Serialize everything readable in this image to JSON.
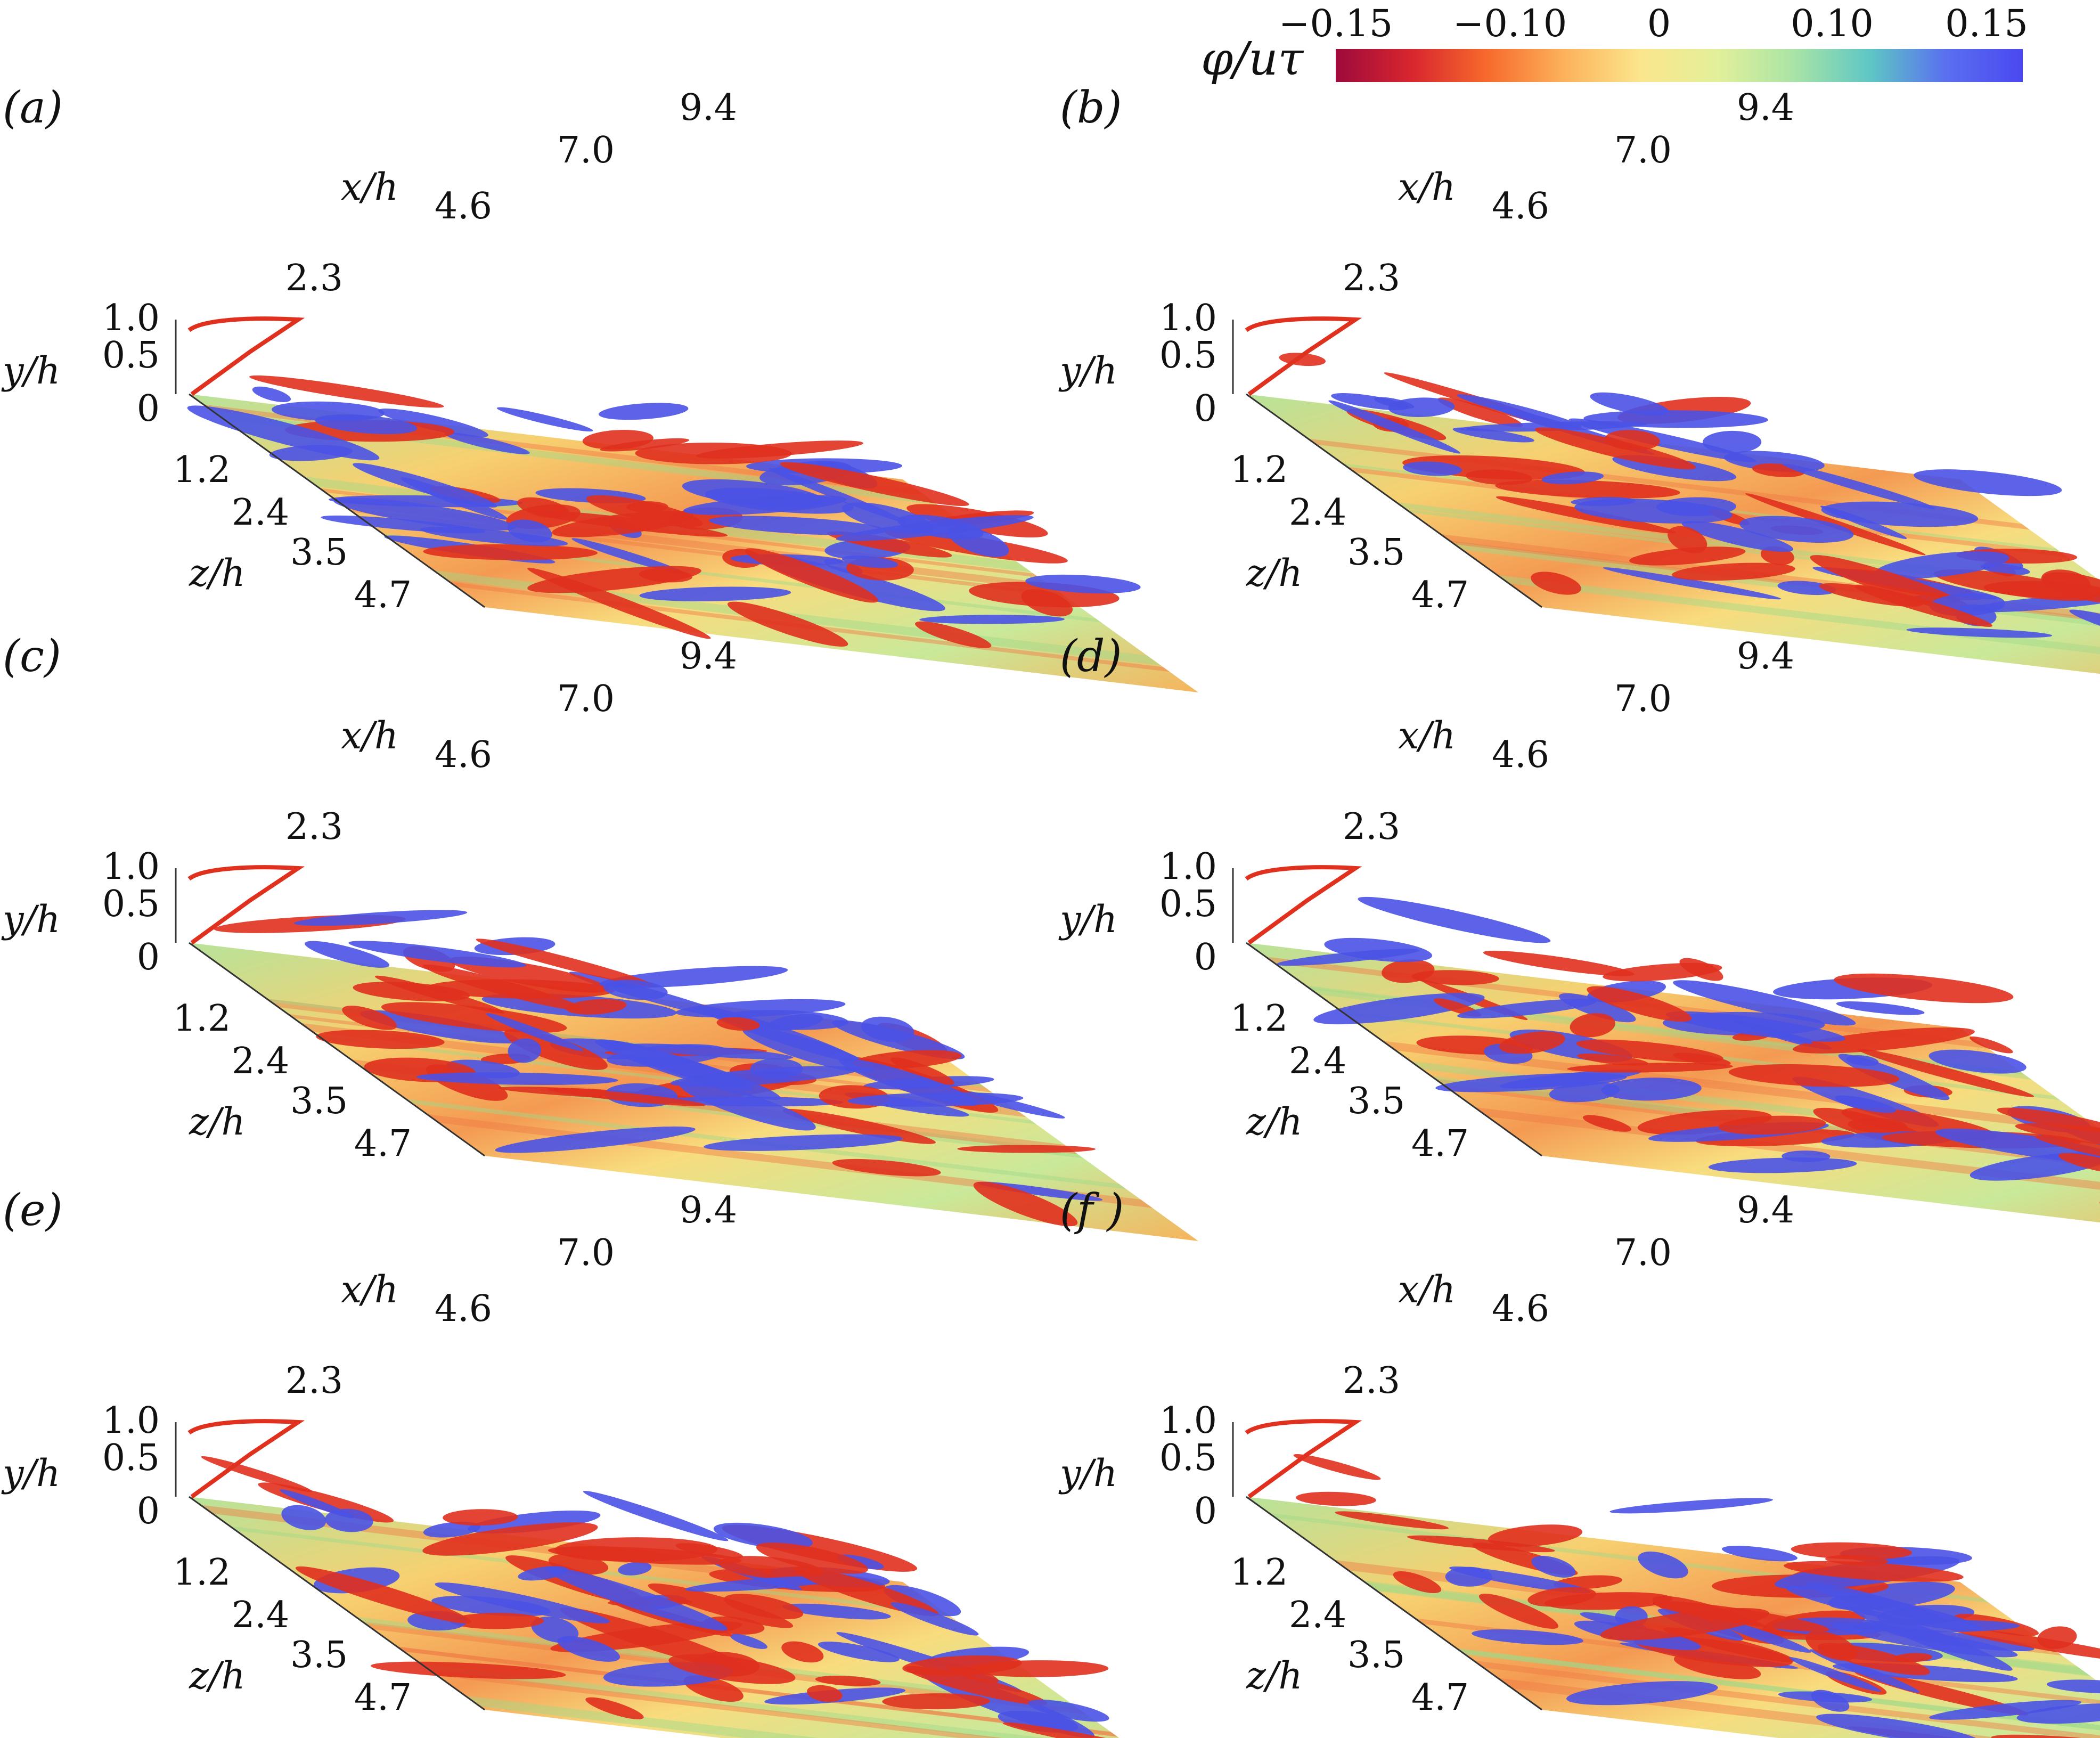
{
  "colorbar": {
    "label": "φ/uτ",
    "ticks": [
      "−0.15",
      "−0.10",
      "0",
      "0.10",
      "0.15"
    ],
    "stops": [
      "#9e0a3c",
      "#d8262e",
      "#f76b2c",
      "#fcb25b",
      "#fbe68c",
      "#e2f09a",
      "#a9e4a6",
      "#5ec6c5",
      "#5a6ff0",
      "#4a48f0"
    ]
  },
  "axes": {
    "x_label": "x/h",
    "y_label": "y/h",
    "z_label": "z/h",
    "x_ticks": [
      "2.3",
      "4.6",
      "7.0",
      "9.4"
    ],
    "y_ticks": [
      "1.0",
      "0.5",
      "0"
    ],
    "z_ticks": [
      "1.2",
      "2.4",
      "3.5",
      "4.7"
    ]
  },
  "colors": {
    "positive_structure": "#4a52e6",
    "negative_structure": "#e0301e",
    "wall_base": "#f2c66a"
  },
  "panels": [
    {
      "label": "(a)"
    },
    {
      "label": "(b)"
    },
    {
      "label": "(c)"
    },
    {
      "label": "(d)"
    },
    {
      "label": "(e)"
    },
    {
      "label": "(f )"
    }
  ]
}
